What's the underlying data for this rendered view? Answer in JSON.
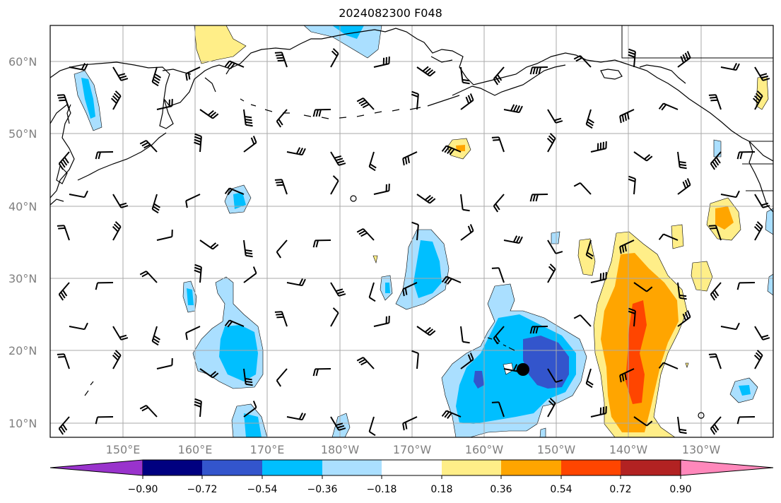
{
  "title": "2024082300 F048",
  "lat_labels": [
    "60°N",
    "50°N",
    "40°N",
    "30°N",
    "20°N",
    "10°N"
  ],
  "lon_labels": [
    "150°E",
    "160°E",
    "170°E",
    "180°W",
    "170°W",
    "160°W",
    "150°W",
    "140°W",
    "130°W"
  ],
  "colorbar": {
    "colors": [
      "#9933cc",
      "#000080",
      "#3355cc",
      "#00bfff",
      "#aadfff",
      "#ffffff",
      "#ffee88",
      "#ffa500",
      "#ff4500",
      "#b22222",
      "#ff88bb"
    ],
    "ticks": [
      "−0.90",
      "−0.72",
      "−0.54",
      "−0.36",
      "−0.18",
      "0.18",
      "0.36",
      "0.54",
      "0.72",
      "0.90"
    ]
  },
  "storm_marker": {
    "lat": 17.5,
    "lon": -154.5
  }
}
